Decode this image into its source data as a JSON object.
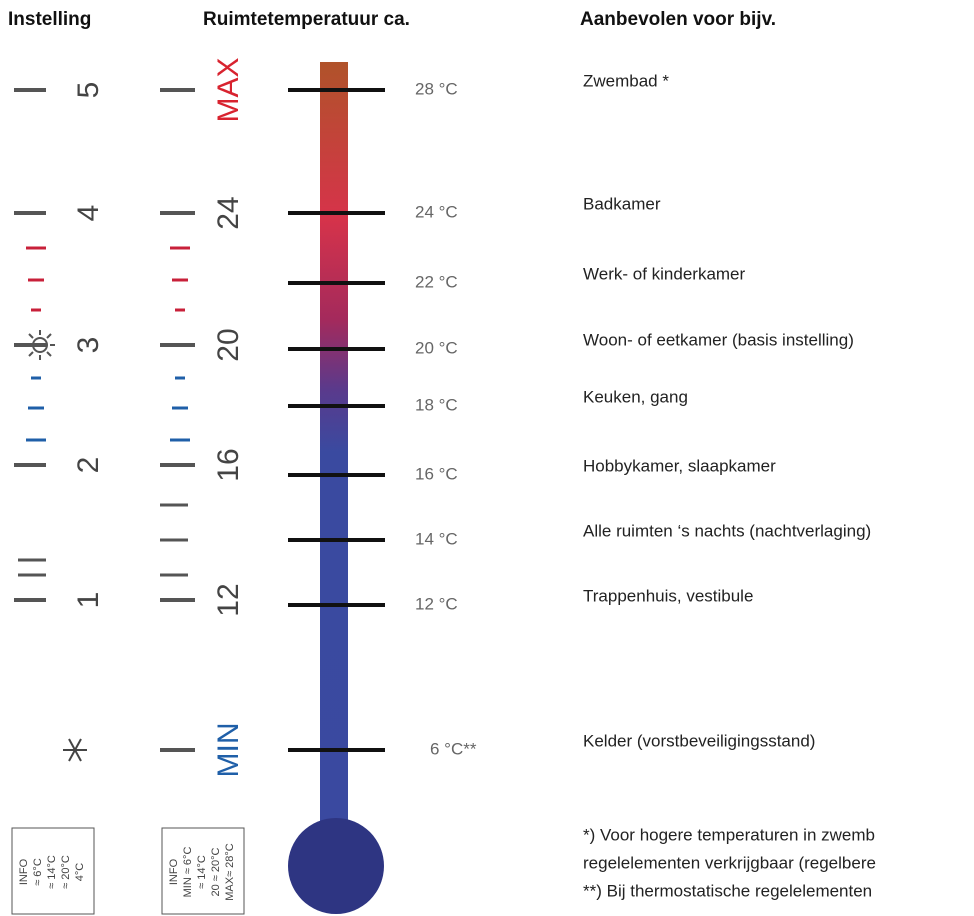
{
  "headers": {
    "setting": "Instelling",
    "room_temperature": "Ruimtetemperatuur ca.",
    "recommended": "Aanbevolen voor bijv."
  },
  "settings": [
    "5",
    "4",
    "3",
    "2",
    "1"
  ],
  "room_scale": [
    "MAX",
    "24",
    "20",
    "16",
    "12",
    "MIN"
  ],
  "rows": [
    {
      "temperature": "28 °C",
      "use": "Zwembad *"
    },
    {
      "temperature": "24 °C",
      "use": "Badkamer"
    },
    {
      "temperature": "22 °C",
      "use": "Werk- of kinderkamer"
    },
    {
      "temperature": "20 °C",
      "use": "Woon- of eetkamer (basis instelling)"
    },
    {
      "temperature": "18 °C",
      "use": "Keuken, gang"
    },
    {
      "temperature": "16 °C",
      "use": "Hobbykamer, slaapkamer"
    },
    {
      "temperature": "14 °C",
      "use": "Alle ruimten ‘s nachts (nachtverlaging)"
    },
    {
      "temperature": "12 °C",
      "use": "Trappenhuis, vestibule"
    },
    {
      "temperature": "6 °C**",
      "use": "Kelder (vorstbeveiligingsstand)"
    }
  ],
  "info_left": [
    "INFO",
    "≈ 6°C",
    "≈ 14°C",
    "≈ 20°C",
    "4°C"
  ],
  "info_right": [
    "INFO",
    "MIN ≈ 6°C",
    "≈ 14°C",
    "20 ≈ 20°C",
    "MAX≈ 28°C"
  ],
  "footnotes": [
    "*) Voor hogere temperaturen in zwemb",
    "regelelementen verkrijgbaar (regelbere",
    "**) Bij thermostatische regelelementen"
  ]
}
